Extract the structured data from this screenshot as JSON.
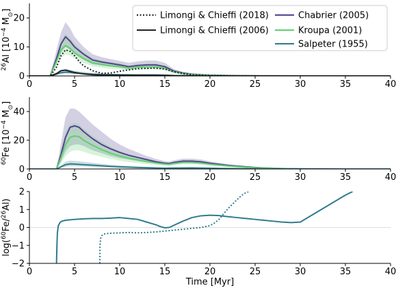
{
  "colors": {
    "chabrier": "#54428e",
    "kroupa": "#5fcf6e",
    "salpeter": "#2e7b8c",
    "limongi2006": "#222222",
    "limongi2018": "#222222",
    "ratio": "#2e7b8c"
  },
  "legend": [
    {
      "label": "Limongi & Chieffi (2018)",
      "style": "dotted",
      "colorKey": "limongi2018"
    },
    {
      "label": "Chabrier (2005)",
      "style": "solid",
      "colorKey": "chabrier"
    },
    {
      "label": "Limongi & Chieffi (2006)",
      "style": "solid",
      "colorKey": "limongi2006"
    },
    {
      "label": "Kroupa (2001)",
      "style": "solid",
      "colorKey": "kroupa"
    },
    {
      "label": "Salpeter (1955)",
      "style": "solid",
      "colorKey": "salpeter"
    }
  ],
  "chart_data": [
    {
      "type": "line",
      "panel": "al26",
      "ylabel_pre": "26",
      "ylabel_mid": "Al [10",
      "ylabel_exp": "−4",
      "ylabel_post": " M",
      "ylabel_sun": "⊙",
      "ylabel_close": "]",
      "xlim": [
        0,
        40
      ],
      "ylim": [
        0,
        25
      ],
      "xticks": [
        "0",
        "5",
        "10",
        "15",
        "20",
        "25",
        "30",
        "35",
        "40"
      ],
      "yticks": [
        0,
        10,
        20
      ],
      "legend_position": "top-right",
      "series": [
        {
          "name": "Chabrier (2005)",
          "colorKey": "chabrier",
          "style": "solid",
          "x": [
            0,
            2.3,
            3,
            3.5,
            4,
            4.5,
            5,
            6,
            7,
            8,
            9,
            10,
            11,
            12,
            13,
            14,
            15,
            16,
            17,
            18,
            20,
            22,
            25,
            30,
            40
          ],
          "y": [
            0,
            0,
            6,
            11,
            13.5,
            12,
            10,
            7.5,
            5.5,
            4.8,
            4.3,
            3.8,
            3.2,
            3.6,
            3.8,
            3.8,
            3.2,
            1.7,
            1.0,
            0.6,
            0.3,
            0.15,
            0.05,
            0,
            0
          ],
          "lo": [
            0,
            0,
            4.5,
            8,
            10,
            9,
            7.5,
            5.5,
            4,
            3.5,
            3.2,
            2.9,
            2.5,
            2.8,
            3.0,
            3.0,
            2.5,
            1.3,
            0.7,
            0.4,
            0.2,
            0.1,
            0.03,
            0,
            0
          ],
          "hi": [
            0,
            0,
            9,
            15,
            18.5,
            16.5,
            13.5,
            10,
            7.5,
            6.5,
            5.8,
            5.2,
            4.5,
            5,
            5.3,
            5.3,
            4.5,
            2.4,
            1.4,
            0.9,
            0.45,
            0.2,
            0.08,
            0,
            0
          ]
        },
        {
          "name": "Kroupa (2001)",
          "colorKey": "kroupa",
          "style": "solid",
          "x": [
            0,
            2.3,
            3,
            3.5,
            4,
            4.5,
            5,
            6,
            7,
            8,
            9,
            10,
            11,
            12,
            13,
            14,
            15,
            16,
            17,
            18,
            20,
            22,
            25,
            30,
            40
          ],
          "y": [
            0,
            0,
            5,
            9,
            10.5,
            9.5,
            8,
            6,
            4.5,
            4,
            3.5,
            3.2,
            2.6,
            3,
            3.1,
            3.1,
            2.6,
            1.4,
            0.8,
            0.5,
            0.25,
            0.1,
            0.04,
            0,
            0
          ],
          "lo": [
            0,
            0,
            3.5,
            6,
            7.5,
            7,
            6,
            4.5,
            3.3,
            2.9,
            2.5,
            2.3,
            1.9,
            2.2,
            2.3,
            2.3,
            1.9,
            1.0,
            0.6,
            0.35,
            0.18,
            0.07,
            0.03,
            0,
            0
          ],
          "hi": [
            0,
            0,
            7,
            12.5,
            14.5,
            13,
            11,
            8.2,
            6.2,
            5.4,
            4.8,
            4.4,
            3.6,
            4.1,
            4.3,
            4.3,
            3.6,
            1.9,
            1.1,
            0.7,
            0.35,
            0.15,
            0.06,
            0,
            0
          ]
        },
        {
          "name": "Salpeter (1955)",
          "colorKey": "salpeter",
          "style": "solid",
          "x": [
            0,
            2.3,
            3,
            3.5,
            4,
            4.5,
            5,
            6,
            7,
            8,
            10,
            12,
            14,
            15,
            16,
            18,
            20,
            25,
            40
          ],
          "y": [
            0,
            0,
            0.6,
            1.1,
            1.3,
            1.2,
            1.0,
            0.8,
            0.6,
            0.5,
            0.4,
            0.35,
            0.35,
            0.3,
            0.15,
            0.06,
            0.02,
            0,
            0
          ],
          "lo": [
            0,
            0,
            0.4,
            0.7,
            0.9,
            0.8,
            0.7,
            0.55,
            0.4,
            0.35,
            0.28,
            0.25,
            0.25,
            0.2,
            0.1,
            0.04,
            0.01,
            0,
            0
          ],
          "hi": [
            0,
            0,
            1.0,
            2.0,
            2.4,
            2.2,
            1.8,
            1.4,
            1.0,
            0.8,
            0.6,
            0.5,
            0.5,
            0.45,
            0.25,
            0.1,
            0.03,
            0,
            0
          ]
        },
        {
          "name": "Limongi & Chieffi (2018)",
          "colorKey": "limongi2018",
          "style": "dotted",
          "x": [
            0,
            2.3,
            3,
            3.5,
            4,
            4.5,
            5,
            5.5,
            6,
            7,
            8,
            9,
            10,
            11,
            12,
            13,
            14,
            15,
            16,
            17,
            18,
            20,
            25,
            40
          ],
          "y": [
            0,
            0,
            3,
            7,
            9,
            8.5,
            7,
            5,
            3.5,
            1.8,
            0.9,
            1.0,
            1.6,
            2.1,
            2.5,
            2.6,
            2.7,
            2.4,
            1.4,
            0.8,
            0.4,
            0.15,
            0.02,
            0
          ]
        },
        {
          "name": "Limongi & Chieffi (2006)",
          "colorKey": "limongi2006",
          "style": "solid",
          "x": [
            0,
            2.3,
            3,
            3.5,
            4,
            4.5,
            5,
            6,
            7,
            8,
            10,
            12,
            14,
            15,
            16,
            18,
            20,
            25,
            40
          ],
          "y": [
            0,
            0,
            0.8,
            1.8,
            2.0,
            1.6,
            1.2,
            0.7,
            0.4,
            0.3,
            0.25,
            0.2,
            0.2,
            0.15,
            0.08,
            0.03,
            0.01,
            0,
            0
          ]
        }
      ]
    },
    {
      "type": "line",
      "panel": "fe60",
      "ylabel_pre": "60",
      "ylabel_mid": "Fe [10",
      "ylabel_exp": "−4",
      "ylabel_post": " M",
      "ylabel_sun": "⊙",
      "ylabel_close": "]",
      "xlim": [
        0,
        40
      ],
      "ylim": [
        0,
        50
      ],
      "xticks": [
        "0",
        "5",
        "10",
        "15",
        "20",
        "25",
        "30",
        "35",
        "40"
      ],
      "yticks": [
        0,
        20,
        40
      ],
      "series": [
        {
          "name": "Chabrier (2005)",
          "colorKey": "chabrier",
          "style": "solid",
          "x": [
            0,
            3.0,
            3.5,
            4,
            4.5,
            5,
            5.5,
            6,
            7,
            8,
            9,
            10,
            11,
            12,
            13,
            14,
            15,
            15.5,
            16,
            17,
            18,
            19,
            20,
            22,
            25,
            28,
            30,
            35,
            40
          ],
          "y": [
            0,
            0,
            10,
            22,
            29,
            30,
            29,
            26,
            21,
            17,
            14,
            11.5,
            9.5,
            8,
            6.5,
            5,
            4,
            3.8,
            4.5,
            5.5,
            5.5,
            5,
            4,
            2.5,
            1.0,
            0.3,
            0.1,
            0,
            0
          ],
          "lo": [
            0,
            0,
            5,
            12,
            16,
            17,
            17,
            16,
            13,
            11,
            9,
            7.5,
            6.5,
            5.5,
            4.5,
            3.7,
            3,
            2.9,
            3.3,
            4,
            4,
            3.6,
            2.9,
            1.8,
            0.7,
            0.2,
            0.07,
            0,
            0
          ],
          "hi": [
            0,
            0,
            18,
            36,
            42,
            42,
            40,
            37,
            31,
            26,
            21,
            17,
            14,
            11.5,
            9,
            7,
            5.5,
            5.2,
            6,
            7.2,
            7.2,
            6.6,
            5.3,
            3.3,
            1.3,
            0.4,
            0.13,
            0,
            0
          ]
        },
        {
          "name": "Kroupa (2001)",
          "colorKey": "kroupa",
          "style": "solid",
          "x": [
            0,
            3.0,
            3.5,
            4,
            4.5,
            5,
            5.5,
            6,
            7,
            8,
            9,
            10,
            11,
            12,
            13,
            14,
            15,
            15.5,
            16,
            17,
            18,
            19,
            20,
            22,
            25,
            28,
            30,
            35,
            40
          ],
          "y": [
            0,
            0,
            8,
            17,
            22,
            23,
            22.5,
            20,
            16.5,
            13.5,
            11,
            9,
            7.5,
            6.3,
            5.2,
            4.2,
            3.4,
            3.2,
            3.8,
            4.6,
            4.6,
            4.1,
            3.3,
            2.1,
            0.8,
            0.25,
            0.08,
            0,
            0
          ],
          "lo": [
            0,
            0,
            4,
            9,
            12,
            13,
            13,
            12,
            10,
            8.5,
            7,
            5.8,
            4.8,
            4.1,
            3.4,
            2.8,
            2.3,
            2.2,
            2.6,
            3.2,
            3.2,
            2.9,
            2.3,
            1.5,
            0.6,
            0.18,
            0.06,
            0,
            0
          ],
          "hi": [
            0,
            0,
            13,
            26,
            31,
            32,
            31,
            28,
            23,
            19,
            15.5,
            12.5,
            10.4,
            8.7,
            7.2,
            5.8,
            4.6,
            4.4,
            5.1,
            6.1,
            6.1,
            5.5,
            4.4,
            2.8,
            1.1,
            0.33,
            0.1,
            0,
            0
          ]
        },
        {
          "name": "Salpeter (1955)",
          "colorKey": "salpeter",
          "style": "solid",
          "x": [
            0,
            3.0,
            3.5,
            4,
            4.5,
            5,
            6,
            7,
            8,
            9,
            10,
            12,
            14,
            15,
            16,
            18,
            20,
            22,
            25,
            30,
            40
          ],
          "y": [
            0,
            0,
            1.5,
            3,
            3.5,
            3.4,
            3.0,
            2.6,
            2.2,
            1.8,
            1.5,
            1.0,
            0.7,
            0.55,
            0.65,
            0.75,
            0.55,
            0.3,
            0.1,
            0.01,
            0
          ],
          "lo": [
            0,
            0,
            0.8,
            1.6,
            1.9,
            1.9,
            1.7,
            1.5,
            1.3,
            1.1,
            0.9,
            0.6,
            0.45,
            0.35,
            0.42,
            0.5,
            0.36,
            0.2,
            0.07,
            0.01,
            0
          ],
          "hi": [
            0,
            0,
            2.5,
            5,
            5.8,
            5.6,
            5.0,
            4.3,
            3.6,
            3.0,
            2.5,
            1.7,
            1.2,
            0.9,
            1.05,
            1.2,
            0.9,
            0.5,
            0.16,
            0.02,
            0
          ]
        }
      ]
    },
    {
      "type": "line",
      "panel": "ratio",
      "xlabel": "Time [Myr]",
      "ylabel_pre": "log(",
      "ylabel_sup1": "60",
      "ylabel_mid": "Fe/",
      "ylabel_sup2": "26",
      "ylabel_post": "Al)",
      "xlim": [
        0,
        40
      ],
      "ylim": [
        -2,
        2
      ],
      "xticks": [
        "0",
        "5",
        "10",
        "15",
        "20",
        "25",
        "30",
        "35",
        "40"
      ],
      "yticks": [
        "−2",
        "−1",
        "0",
        "1",
        "2"
      ],
      "ytick_values": [
        -2,
        -1,
        0,
        1,
        2
      ],
      "series": [
        {
          "name": "Limongi & Chieffi (2006)",
          "colorKey": "ratio",
          "style": "solid",
          "x": [
            3.0,
            3.05,
            3.1,
            3.2,
            3.4,
            3.6,
            4,
            5,
            6,
            7,
            8,
            9,
            10,
            11,
            12,
            13,
            14,
            14.5,
            15,
            15.5,
            16,
            17,
            18,
            19,
            20,
            21,
            22,
            23,
            24,
            25,
            26,
            27,
            28,
            29,
            30,
            31,
            32,
            33,
            34,
            35,
            35.8
          ],
          "y": [
            -2.0,
            -1.0,
            -0.3,
            0.1,
            0.28,
            0.35,
            0.4,
            0.45,
            0.48,
            0.5,
            0.5,
            0.52,
            0.55,
            0.5,
            0.45,
            0.3,
            0.15,
            0.05,
            -0.02,
            0.0,
            0.12,
            0.35,
            0.55,
            0.65,
            0.68,
            0.66,
            0.6,
            0.55,
            0.5,
            0.45,
            0.4,
            0.35,
            0.3,
            0.27,
            0.3,
            0.6,
            0.9,
            1.2,
            1.5,
            1.8,
            2.0
          ]
        },
        {
          "name": "Limongi & Chieffi (2018)",
          "colorKey": "ratio",
          "style": "dotted",
          "x": [
            7.8,
            7.82,
            7.9,
            8.1,
            8.4,
            9,
            10,
            11,
            12,
            13,
            14,
            15,
            16,
            17,
            18,
            19,
            20,
            20.5,
            21,
            21.5,
            22,
            22.5,
            23,
            23.5,
            24,
            24.3
          ],
          "y": [
            -2.0,
            -1.0,
            -0.6,
            -0.4,
            -0.35,
            -0.32,
            -0.3,
            -0.28,
            -0.3,
            -0.28,
            -0.25,
            -0.2,
            -0.15,
            -0.1,
            -0.05,
            0.0,
            0.1,
            0.25,
            0.45,
            0.75,
            1.05,
            1.3,
            1.55,
            1.78,
            1.95,
            2.0
          ]
        }
      ]
    }
  ]
}
